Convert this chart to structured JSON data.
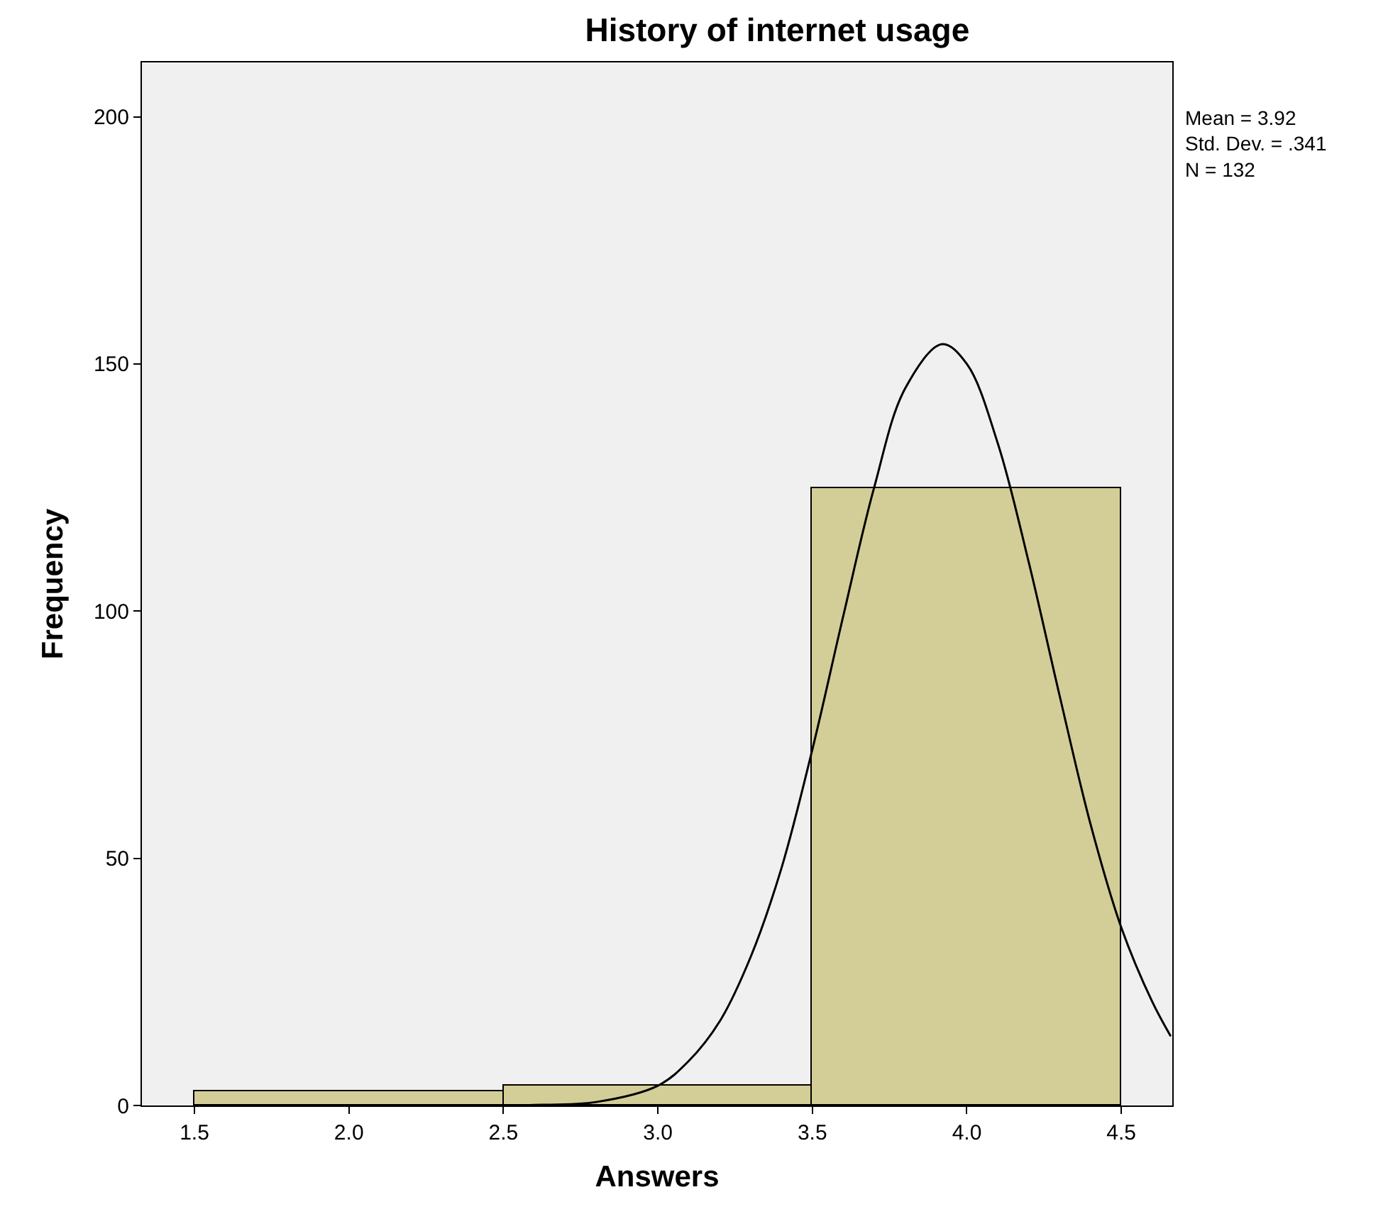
{
  "chart_data": {
    "type": "histogram",
    "title": "History of internet usage",
    "xlabel": "Answers",
    "ylabel": "Frequency",
    "bins": [
      1.5,
      2.5,
      3.5,
      4.5
    ],
    "values": [
      3,
      4,
      125
    ],
    "color": "#d3ce97",
    "series": [
      {
        "type": "line",
        "color": "#000000",
        "x": [
          2.4,
          2.6,
          2.8,
          3.0,
          3.1,
          3.2,
          3.3,
          3.4,
          3.5,
          3.6,
          3.7,
          3.8,
          3.92,
          4.0,
          4.1,
          4.2,
          4.3,
          4.4,
          4.5,
          4.6,
          4.66
        ],
        "values": [
          0,
          0.1,
          0.7,
          4,
          9,
          17,
          30,
          48,
          72,
          99,
          125,
          145,
          154,
          150,
          134,
          110,
          83,
          57,
          36,
          21,
          14
        ]
      }
    ],
    "xlim": [
      1.33,
      4.665
    ],
    "ylim": [
      0,
      211
    ],
    "xticks": [
      1.5,
      {
        "value": 2,
        "label": "2.0"
      },
      2.5,
      {
        "value": 3,
        "label": "3.0"
      },
      3.5,
      {
        "value": 4,
        "label": "4.0"
      },
      4.5
    ],
    "yticks": [
      0,
      50,
      100,
      150,
      200
    ],
    "grid": false,
    "marker": "none",
    "line_style": "solid",
    "annotations": [
      "Mean = 3.92",
      "Std. Dev. = .341",
      "N = 132"
    ]
  }
}
